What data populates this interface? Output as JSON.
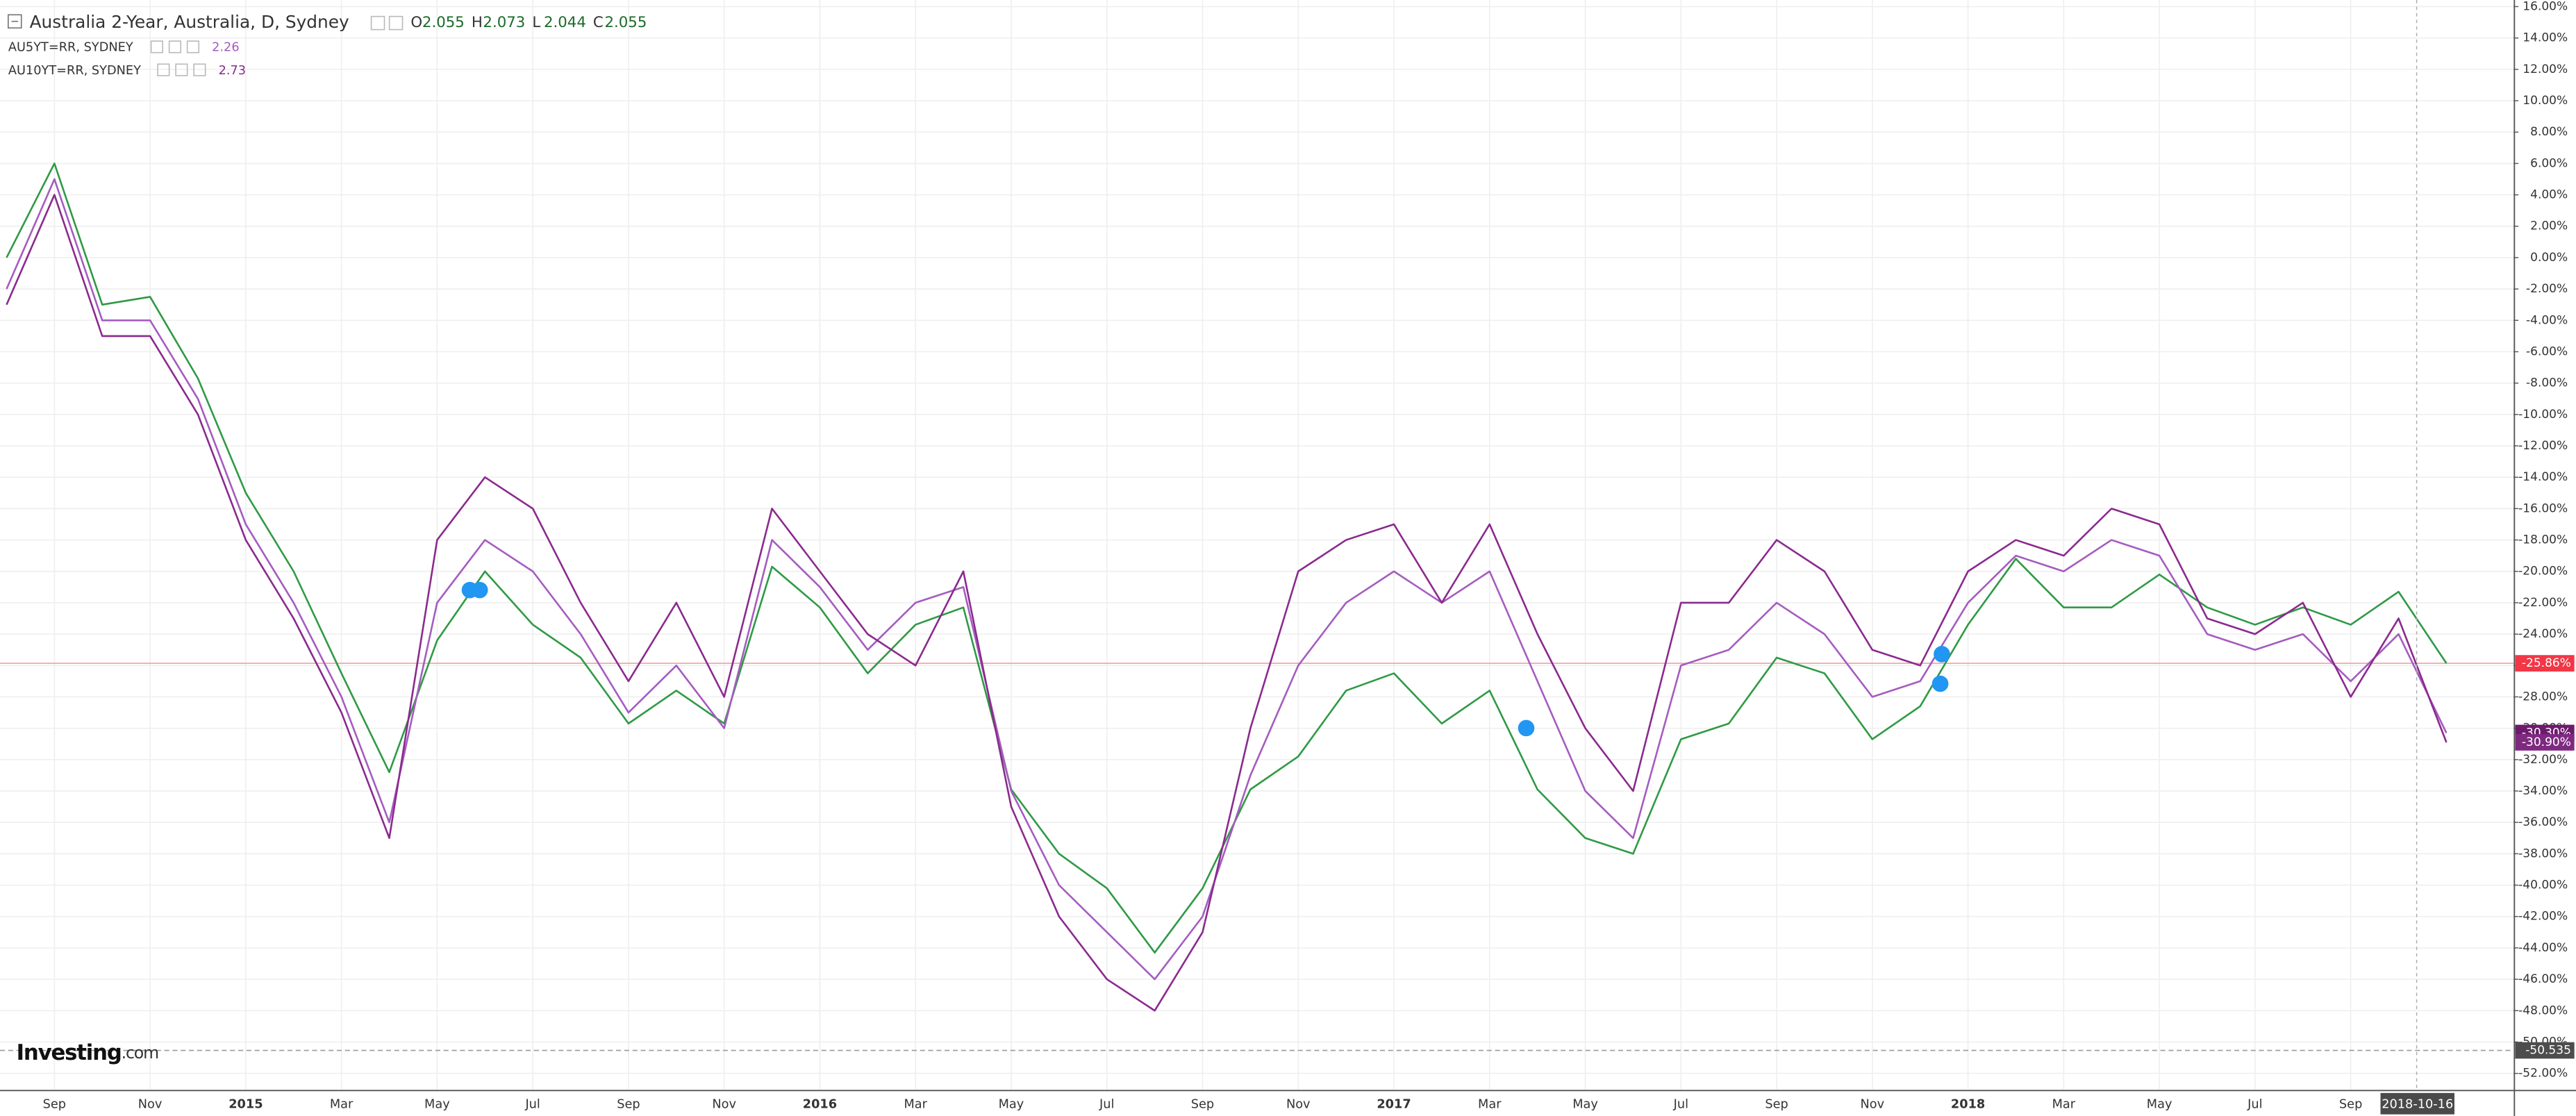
{
  "chart_data": {
    "type": "line",
    "header": {
      "ohlc": [
        {
          "label": "O",
          "value": 2.055
        },
        {
          "label": "H",
          "value": 2.073
        },
        {
          "label": "L",
          "value": 2.044
        },
        {
          "label": "C",
          "value": 2.055
        }
      ]
    },
    "categories": [
      null,
      "Sep",
      null,
      "Nov",
      null,
      "2015",
      null,
      "Mar",
      null,
      "May",
      null,
      "Jul",
      null,
      "Sep",
      null,
      "Nov",
      null,
      "2016",
      null,
      "Mar",
      null,
      "May",
      null,
      "Jul",
      null,
      "Sep",
      null,
      "Nov",
      null,
      "2017",
      null,
      "Mar",
      null,
      "May",
      null,
      "Jul",
      null,
      "Sep",
      null,
      "Nov",
      null,
      "2018",
      null,
      "Mar",
      null,
      "May",
      null,
      "Jul",
      null,
      "Sep",
      null,
      null
    ],
    "series": [
      {
        "name": "Australia 2-Year, Australia, D, Sydney",
        "color": "#2f9a45",
        "values": [
          0,
          6,
          -3,
          -2.5,
          -7.7,
          -15,
          -20,
          -26.5,
          -32.8,
          -24.4,
          -20,
          -23.4,
          -25.5,
          -29.7,
          -27.6,
          -29.7,
          -19.7,
          -22.3,
          -26.5,
          -23.4,
          -22.3,
          -33.9,
          -38,
          -40.2,
          -44.3,
          -40.2,
          -33.9,
          -31.8,
          -27.6,
          -26.5,
          -29.7,
          -27.6,
          -33.9,
          -37,
          -38,
          -30.7,
          -29.7,
          -25.5,
          -26.5,
          -30.7,
          -28.6,
          -23.4,
          -19.2,
          -22.3,
          -22.3,
          -20.2,
          -22.3,
          -23.4,
          -22.3,
          -23.4,
          -21.3,
          -25.86
        ]
      },
      {
        "name": "AU5YT=RR, SYDNEY",
        "last": 2.26,
        "color": "#a55cc0",
        "values": [
          -2,
          5,
          -4,
          -4,
          -9,
          -17,
          -22,
          -28,
          -36,
          -22,
          -18,
          -20,
          -24,
          -29,
          -26,
          -30,
          -18,
          -21,
          -25,
          -22,
          -21,
          -34,
          -40,
          -43,
          -46,
          -42,
          -33,
          -26,
          -22,
          -20,
          -22,
          -20,
          -27,
          -34,
          -37,
          -26,
          -25,
          -22,
          -24,
          -28,
          -27,
          -22,
          -19,
          -20,
          -18,
          -19,
          -24,
          -25,
          -24,
          -27,
          -24,
          -30.3
        ]
      },
      {
        "name": "AU10YT=RR, SYDNEY",
        "last": 2.73,
        "color": "#8b2a8e",
        "values": [
          -3,
          4,
          -5,
          -5,
          -10,
          -18,
          -23,
          -29,
          -37,
          -18,
          -14,
          -16,
          -22,
          -27,
          -22,
          -28,
          -16,
          -20,
          -24,
          -26,
          -20,
          -35,
          -42,
          -46,
          -48,
          -43,
          -30,
          -20,
          -18,
          -17,
          -22,
          -17,
          -24,
          -30,
          -34,
          -22,
          -22,
          -18,
          -20,
          -25,
          -26,
          -20,
          -18,
          -19,
          -16,
          -17,
          -23,
          -24,
          -22,
          -28,
          -23,
          -30.9
        ]
      }
    ],
    "ylim": [
      -53.04,
      16.42
    ],
    "yticks": [
      {
        "value": 16,
        "label": "16.00%"
      },
      {
        "value": 14,
        "label": "14.00%"
      },
      {
        "value": 12,
        "label": "12.00%"
      },
      {
        "value": 10,
        "label": "10.00%"
      },
      {
        "value": 8,
        "label": "8.00%"
      },
      {
        "value": 6,
        "label": "6.00%"
      },
      {
        "value": 4,
        "label": "4.00%"
      },
      {
        "value": 2,
        "label": "2.00%"
      },
      {
        "value": 0,
        "label": "0.00%"
      },
      {
        "value": -2,
        "label": "-2.00%"
      },
      {
        "value": -4,
        "label": "-4.00%"
      },
      {
        "value": -6,
        "label": "-6.00%"
      },
      {
        "value": -8,
        "label": "-8.00%"
      },
      {
        "value": -10,
        "label": "-10.00%"
      },
      {
        "value": -12,
        "label": "-12.00%"
      },
      {
        "value": -14,
        "label": "-14.00%"
      },
      {
        "value": -16,
        "label": "-16.00%"
      },
      {
        "value": -18,
        "label": "-18.00%"
      },
      {
        "value": -20,
        "label": "-20.00%"
      },
      {
        "value": -22,
        "label": "-22.00%"
      },
      {
        "value": -24,
        "label": "-24.00%"
      },
      {
        "value": -26,
        "label": "-26.00%"
      },
      {
        "value": -28,
        "label": "-28.00%"
      },
      {
        "value": -30,
        "label": "-30.00%"
      },
      {
        "value": -32,
        "label": "-32.00%"
      },
      {
        "value": -34,
        "label": "-34.00%"
      },
      {
        "value": -36,
        "label": "-36.00%"
      },
      {
        "value": -38,
        "label": "-38.00%"
      },
      {
        "value": -40,
        "label": "-40.00%"
      },
      {
        "value": -42,
        "label": "-42.00%"
      },
      {
        "value": -44,
        "label": "-44.00%"
      },
      {
        "value": -46,
        "label": "-46.00%"
      },
      {
        "value": -48,
        "label": "-48.00%"
      },
      {
        "value": -50,
        "label": "-50.00%"
      },
      {
        "value": -52,
        "label": "-52.00%"
      }
    ],
    "grid": true,
    "price_tags": [
      {
        "value": -25.86,
        "label": "-25.86%",
        "color": "#f23645",
        "line": "solid"
      },
      {
        "value": -30.3,
        "label": "-30.30%",
        "color": "#6d1a6d"
      },
      {
        "value": -30.9,
        "label": "-30.90%",
        "color": "#7e2a80"
      },
      {
        "value": -50.535,
        "label": "-50.535",
        "color": "#4d4d4d",
        "line": "dashed"
      }
    ],
    "crosshair_label": "2018-10-16",
    "watermark": [
      "Investing",
      ".com"
    ]
  }
}
